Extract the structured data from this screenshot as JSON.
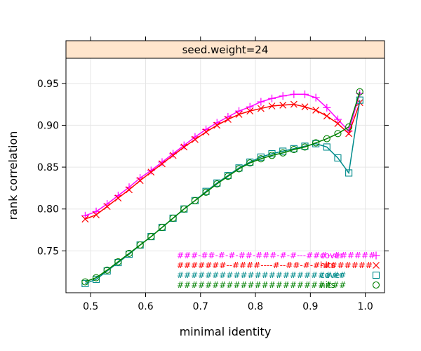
{
  "chart_data": {
    "type": "line",
    "panel_title": "seed.weight=24",
    "xlabel": "minimal identity",
    "ylabel": "rank correlation",
    "xlim": [
      0.455,
      1.035
    ],
    "ylim": [
      0.7,
      0.98
    ],
    "x_ticks": [
      0.5,
      0.6,
      0.7,
      0.8,
      0.9,
      1.0
    ],
    "x_tick_labels": [
      "0.5",
      "0.6",
      "0.7",
      "0.8",
      "0.9",
      "1.0"
    ],
    "y_ticks": [
      0.75,
      0.8,
      0.85,
      0.9,
      0.95
    ],
    "y_tick_labels": [
      "0.75",
      "0.80",
      "0.85",
      "0.90",
      "0.95"
    ],
    "grid": true,
    "colors": {
      "strip": "#ffe5cc",
      "grid": "#e6e6e6"
    },
    "x": [
      0.49,
      0.51,
      0.53,
      0.55,
      0.57,
      0.59,
      0.61,
      0.63,
      0.65,
      0.67,
      0.69,
      0.71,
      0.73,
      0.75,
      0.77,
      0.79,
      0.81,
      0.83,
      0.85,
      0.87,
      0.89,
      0.91,
      0.93,
      0.95,
      0.97,
      0.99
    ],
    "series": [
      {
        "legend_text": "###-##-#-#-##-###-#-#---###--######",
        "legend_label": "cover",
        "color": "#ff00ff",
        "marker": "plus",
        "values": [
          0.792,
          0.797,
          0.806,
          0.816,
          0.826,
          0.837,
          0.846,
          0.856,
          0.866,
          0.876,
          0.886,
          0.895,
          0.903,
          0.91,
          0.917,
          0.922,
          0.928,
          0.932,
          0.935,
          0.937,
          0.937,
          0.933,
          0.921,
          0.907,
          0.893,
          0.938
        ]
      },
      {
        "legend_text": "#######--####----#--##-#-#-#######",
        "legend_label": "hits",
        "color": "#ff0000",
        "marker": "x",
        "values": [
          0.788,
          0.793,
          0.803,
          0.813,
          0.823,
          0.834,
          0.844,
          0.854,
          0.864,
          0.874,
          0.883,
          0.892,
          0.9,
          0.907,
          0.913,
          0.917,
          0.92,
          0.923,
          0.924,
          0.925,
          0.922,
          0.918,
          0.911,
          0.902,
          0.89,
          0.927
        ]
      },
      {
        "legend_text": "########################",
        "legend_label": "cover",
        "color": "#008b8b",
        "marker": "square",
        "values": [
          0.711,
          0.716,
          0.726,
          0.736,
          0.746,
          0.757,
          0.767,
          0.778,
          0.789,
          0.8,
          0.81,
          0.821,
          0.831,
          0.84,
          0.849,
          0.856,
          0.862,
          0.866,
          0.869,
          0.872,
          0.875,
          0.878,
          0.874,
          0.861,
          0.843,
          0.93
        ]
      },
      {
        "legend_text": "########################",
        "legend_label": "hits",
        "color": "#008000",
        "marker": "circle",
        "values": [
          0.713,
          0.718,
          0.727,
          0.737,
          0.747,
          0.757,
          0.767,
          0.778,
          0.789,
          0.8,
          0.81,
          0.82,
          0.83,
          0.839,
          0.848,
          0.855,
          0.86,
          0.864,
          0.867,
          0.871,
          0.874,
          0.879,
          0.884,
          0.89,
          0.898,
          0.94
        ]
      }
    ]
  }
}
